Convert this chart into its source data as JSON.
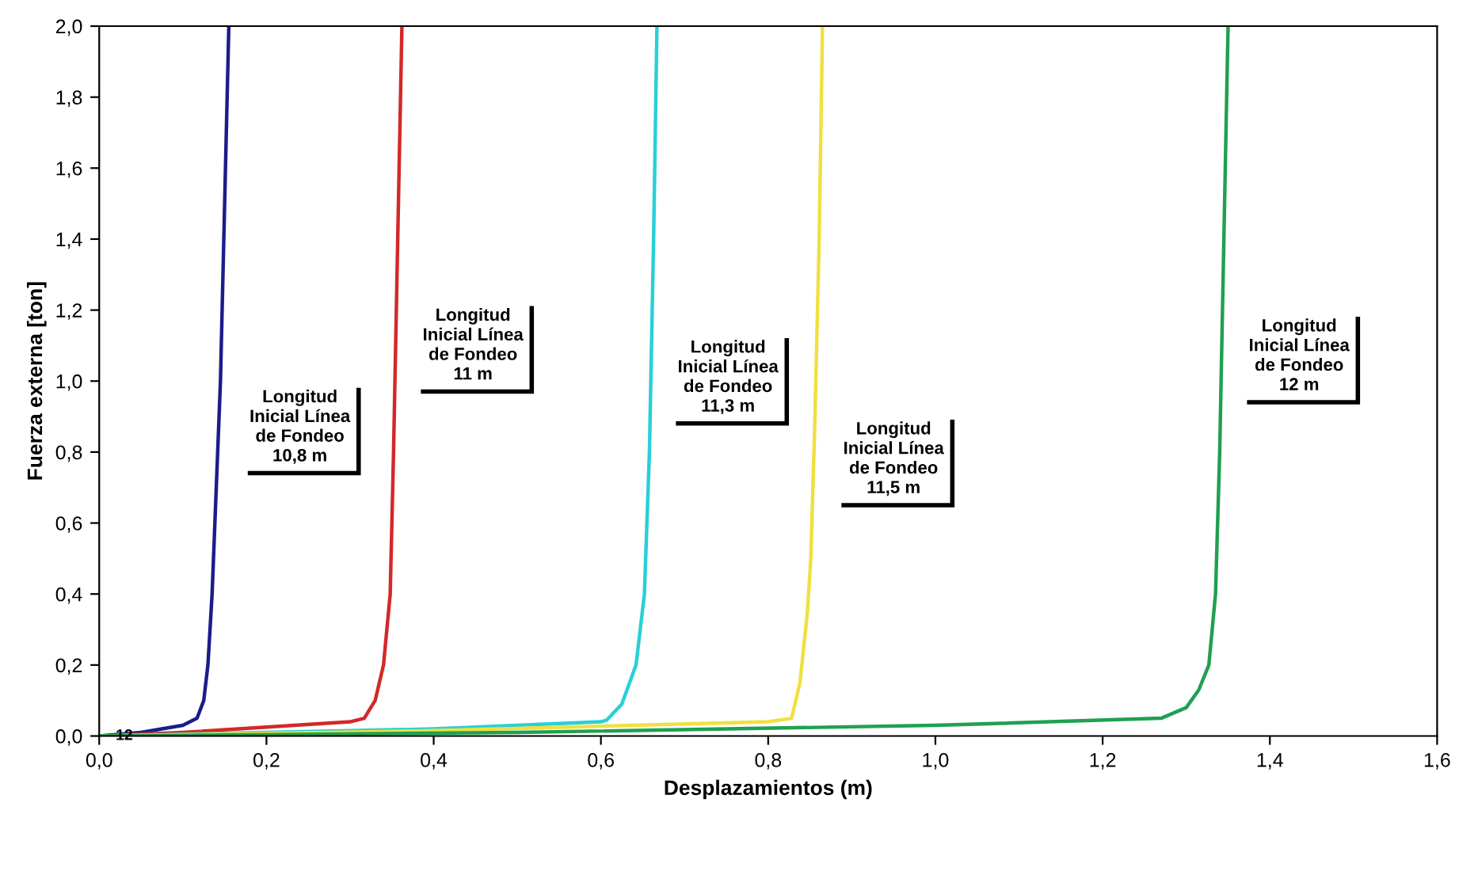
{
  "chart_data": {
    "type": "line",
    "xlabel": "Desplazamientos (m)",
    "ylabel": "Fuerza externa [ton]",
    "xlim": [
      0,
      1.6
    ],
    "ylim": [
      0,
      2.0
    ],
    "xticks": [
      {
        "value": 0,
        "label": "0,0"
      },
      {
        "value": 0.2,
        "label": "0,2"
      },
      {
        "value": 0.4,
        "label": "0,4"
      },
      {
        "value": 0.6,
        "label": "0,6"
      },
      {
        "value": 0.8,
        "label": "0,8"
      },
      {
        "value": 1.0,
        "label": "1,0"
      },
      {
        "value": 1.2,
        "label": "1,2"
      },
      {
        "value": 1.4,
        "label": "1,4"
      },
      {
        "value": 1.6,
        "label": "1,6"
      }
    ],
    "yticks": [
      {
        "value": 0,
        "label": "0,0"
      },
      {
        "value": 0.2,
        "label": "0,2"
      },
      {
        "value": 0.4,
        "label": "0,4"
      },
      {
        "value": 0.6,
        "label": "0,6"
      },
      {
        "value": 0.8,
        "label": "0,8"
      },
      {
        "value": 1.0,
        "label": "1,0"
      },
      {
        "value": 1.2,
        "label": "1,2"
      },
      {
        "value": 1.4,
        "label": "1,4"
      },
      {
        "value": 1.6,
        "label": "1,6"
      },
      {
        "value": 1.8,
        "label": "1,8"
      },
      {
        "value": 2.0,
        "label": "2,0"
      }
    ],
    "grid": false,
    "legend": false,
    "marker": "none",
    "line_style": "solid",
    "series": [
      {
        "name": "Longitud\nInicial Línea\nde Fondeo\n10,8 m",
        "color": "#1c1c8a",
        "x": [
          0,
          0.05,
          0.1,
          0.117,
          0.125,
          0.13,
          0.135,
          0.14,
          0.145,
          0.15,
          0.155
        ],
        "values": [
          0,
          0.01,
          0.03,
          0.05,
          0.1,
          0.2,
          0.4,
          0.7,
          1.0,
          1.5,
          2.0
        ]
      },
      {
        "name": "Longitud\nInicial Línea\nde Fondeo\n11 m",
        "color": "#d42828",
        "x": [
          0,
          0.1,
          0.2,
          0.3,
          0.317,
          0.33,
          0.34,
          0.348,
          0.352,
          0.357,
          0.362
        ],
        "values": [
          0,
          0.01,
          0.025,
          0.04,
          0.05,
          0.1,
          0.2,
          0.4,
          0.8,
          1.4,
          2.0
        ]
      },
      {
        "name": "Longitud\nInicial Línea\nde Fondeo\n11,3 m",
        "color": "#28d0d8",
        "x": [
          0,
          0.2,
          0.4,
          0.6,
          0.607,
          0.625,
          0.642,
          0.652,
          0.658,
          0.663,
          0.667
        ],
        "values": [
          0,
          0.01,
          0.02,
          0.04,
          0.045,
          0.09,
          0.2,
          0.4,
          0.8,
          1.4,
          2.0
        ]
      },
      {
        "name": "Longitud\nInicial Línea\nde Fondeo\n11,5 m",
        "color": "#f0e040",
        "x": [
          0,
          0.4,
          0.8,
          0.828,
          0.838,
          0.847,
          0.851,
          0.856,
          0.861,
          0.865
        ],
        "values": [
          0,
          0.015,
          0.04,
          0.05,
          0.15,
          0.35,
          0.5,
          0.9,
          1.4,
          2.0
        ]
      },
      {
        "name": "Longitud\nInicial Línea\nde Fondeo\n12 m",
        "color": "#20a050",
        "x": [
          0,
          0.5,
          1.0,
          1.27,
          1.3,
          1.315,
          1.327,
          1.335,
          1.34,
          1.345,
          1.35
        ],
        "values": [
          0,
          0.01,
          0.03,
          0.05,
          0.08,
          0.13,
          0.2,
          0.4,
          0.8,
          1.4,
          2.0
        ]
      }
    ],
    "annotations": [
      {
        "text": "12",
        "x": 0.03,
        "y": 0
      }
    ]
  }
}
